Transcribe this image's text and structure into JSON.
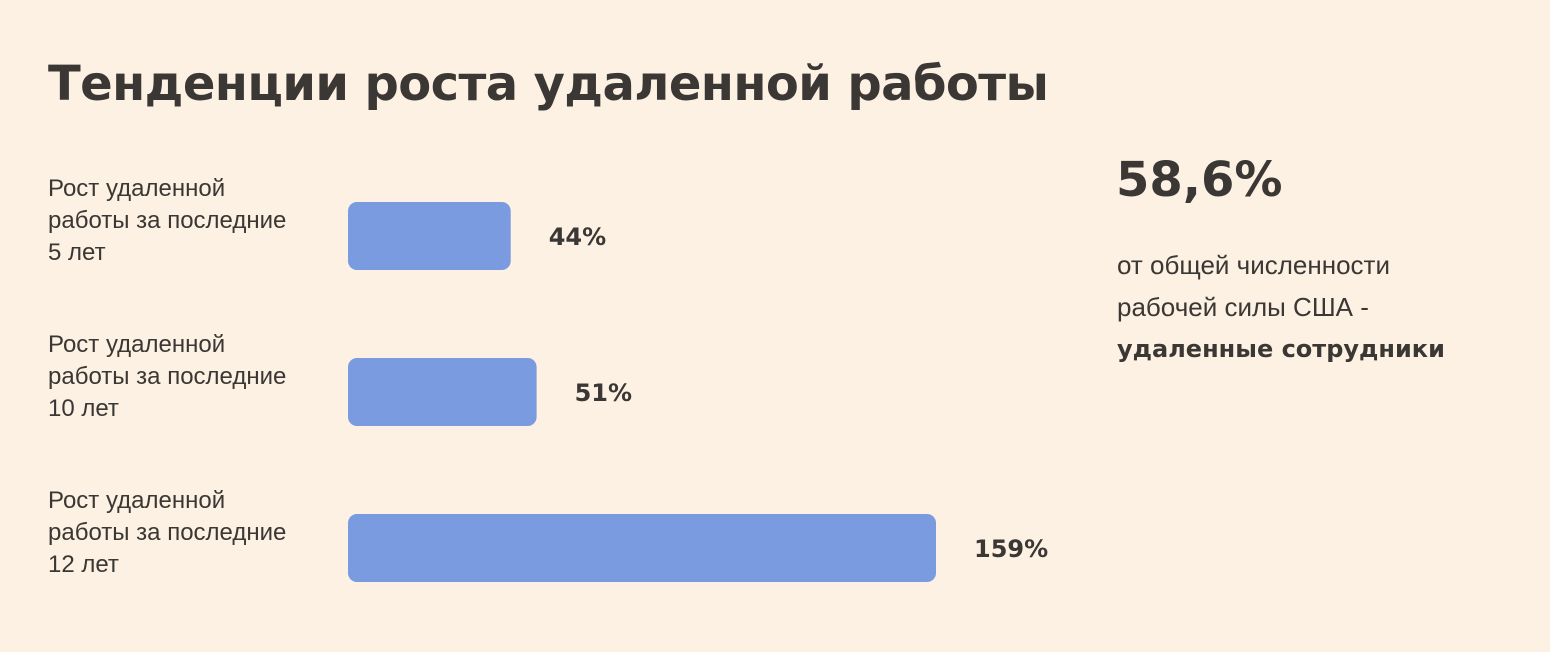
{
  "title": "Тенденции роста удаленной работы",
  "chart_data": {
    "type": "bar",
    "orientation": "horizontal",
    "categories": [
      [
        "Рост удаленной",
        "работы за последние",
        "5 лет"
      ],
      [
        "Рост удаленной",
        "работы за последние",
        "10 лет"
      ],
      [
        "Рост удаленной",
        "работы за последние",
        "12 лет"
      ]
    ],
    "values": [
      44,
      51,
      159
    ],
    "data_labels": [
      "44%",
      "51%",
      "159%"
    ],
    "unit": "%",
    "xlim": [
      0,
      159
    ],
    "bar_color": "#7a9be0",
    "grid": false,
    "axes_visible": false
  },
  "stat": {
    "value": "58,6%",
    "line1": "от общей численности",
    "line2": "рабочей силы США -",
    "line3": "удаленные сотрудники"
  },
  "colors": {
    "background": "#fcf1e2",
    "text": "#3b3735",
    "bar": "#7a9be0"
  }
}
